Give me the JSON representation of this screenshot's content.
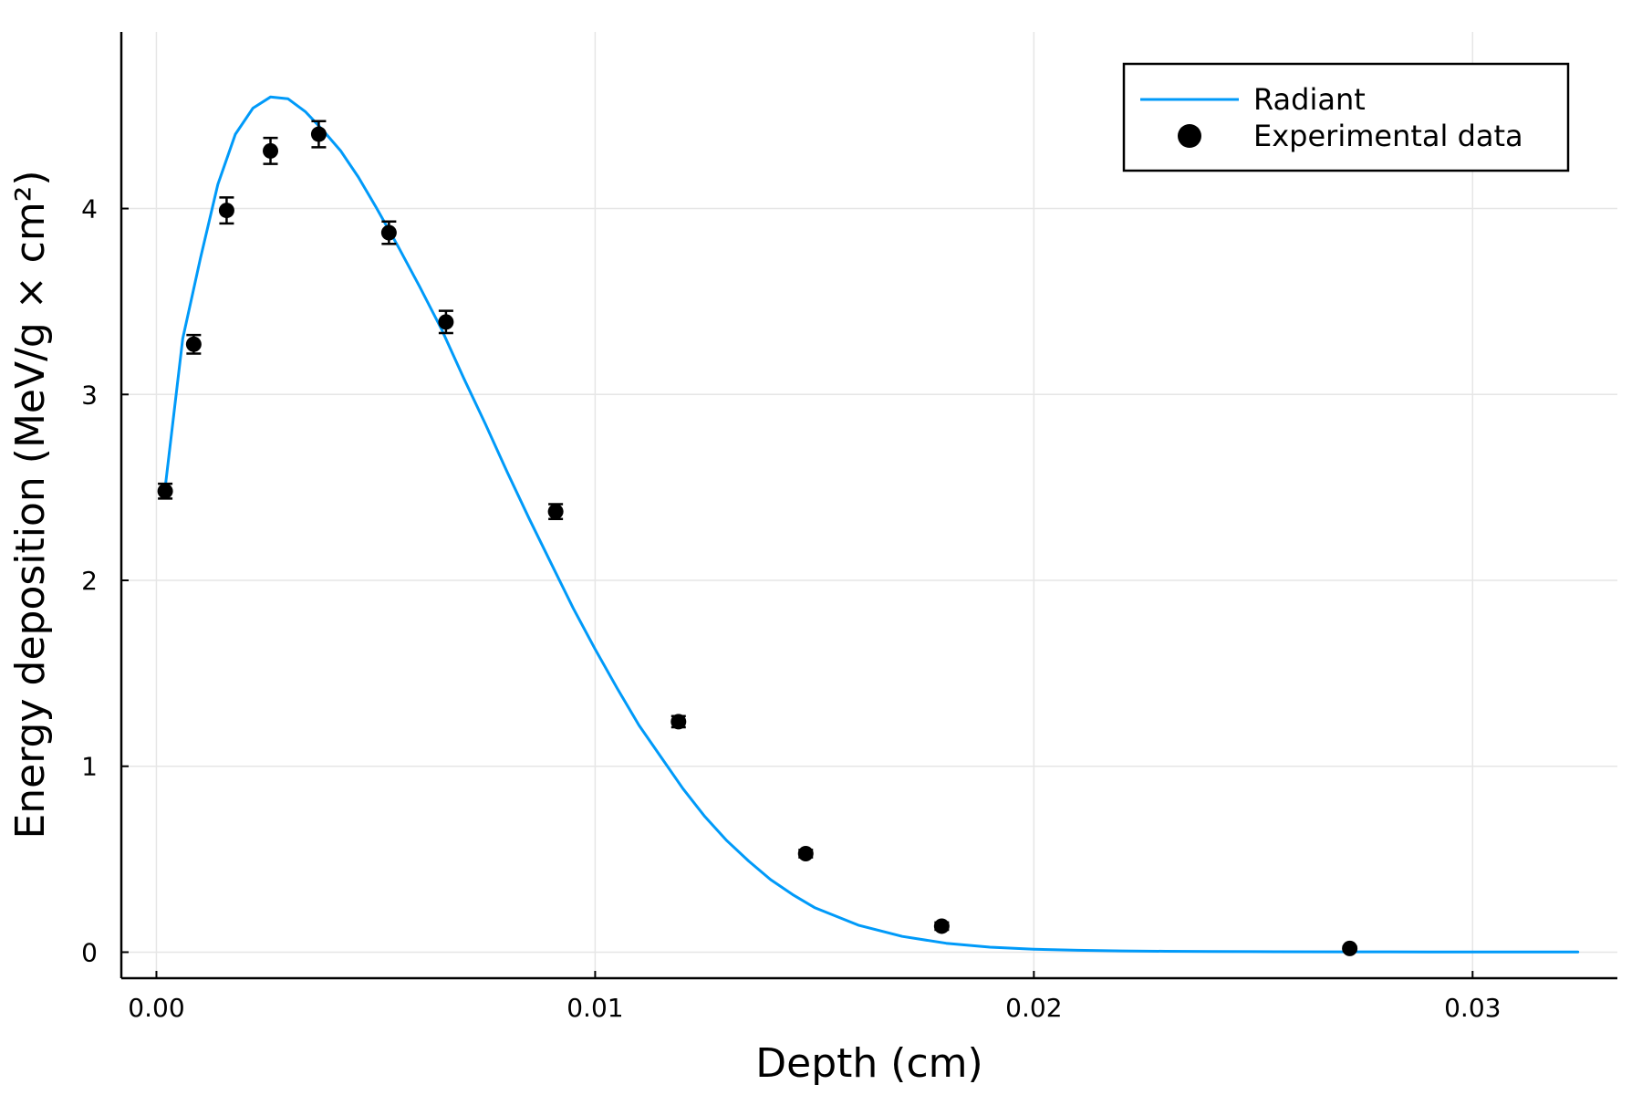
{
  "chart_data": {
    "type": "line",
    "title": "",
    "xlabel": "Depth (cm)",
    "ylabel": "Energy deposition (MeV/g × cm²)",
    "xlim": [
      -0.0008,
      0.0333
    ],
    "ylim": [
      -0.14,
      4.95
    ],
    "x_ticks": [
      {
        "value": 0.0,
        "label": "0.00"
      },
      {
        "value": 0.01,
        "label": "0.01"
      },
      {
        "value": 0.02,
        "label": "0.02"
      },
      {
        "value": 0.03,
        "label": "0.03"
      }
    ],
    "y_ticks": [
      {
        "value": 0,
        "label": "0"
      },
      {
        "value": 1,
        "label": "1"
      },
      {
        "value": 2,
        "label": "2"
      },
      {
        "value": 3,
        "label": "3"
      },
      {
        "value": 4,
        "label": "4"
      }
    ],
    "grid": true,
    "legend_position": "top-right",
    "series": [
      {
        "name": "Radiant",
        "kind": "line",
        "color": "#009af9",
        "x": [
          0.0002,
          0.0006,
          0.001,
          0.0014,
          0.0018,
          0.0022,
          0.0026,
          0.003,
          0.0034,
          0.0038,
          0.0042,
          0.0046,
          0.005,
          0.0055,
          0.006,
          0.0065,
          0.007,
          0.0075,
          0.008,
          0.0085,
          0.009,
          0.0095,
          0.01,
          0.0105,
          0.011,
          0.0115,
          0.012,
          0.0125,
          0.013,
          0.0135,
          0.014,
          0.0145,
          0.015,
          0.016,
          0.017,
          0.018,
          0.019,
          0.02,
          0.021,
          0.022,
          0.023,
          0.024,
          0.025,
          0.027,
          0.029,
          0.031,
          0.0324
        ],
        "y": [
          2.5,
          3.3,
          3.73,
          4.13,
          4.4,
          4.54,
          4.6,
          4.59,
          4.52,
          4.42,
          4.31,
          4.17,
          4.01,
          3.8,
          3.58,
          3.35,
          3.09,
          2.84,
          2.58,
          2.33,
          2.09,
          1.85,
          1.63,
          1.42,
          1.22,
          1.05,
          0.88,
          0.73,
          0.6,
          0.49,
          0.39,
          0.31,
          0.24,
          0.145,
          0.085,
          0.048,
          0.027,
          0.016,
          0.01,
          0.007,
          0.005,
          0.004,
          0.003,
          0.002,
          0.0015,
          0.001,
          0.001
        ]
      },
      {
        "name": "Experimental data",
        "kind": "scatter",
        "color": "#000000",
        "x": [
          0.0002,
          0.00085,
          0.0016,
          0.0026,
          0.0037,
          0.0053,
          0.0066,
          0.0091,
          0.0119,
          0.0148,
          0.0179,
          0.0272
        ],
        "y": [
          2.48,
          3.27,
          3.99,
          4.31,
          4.4,
          3.87,
          3.39,
          2.37,
          1.24,
          0.53,
          0.14,
          0.02
        ],
        "err": [
          0.04,
          0.05,
          0.07,
          0.07,
          0.07,
          0.06,
          0.06,
          0.04,
          0.03,
          0.02,
          0.02,
          0.01
        ]
      }
    ]
  }
}
